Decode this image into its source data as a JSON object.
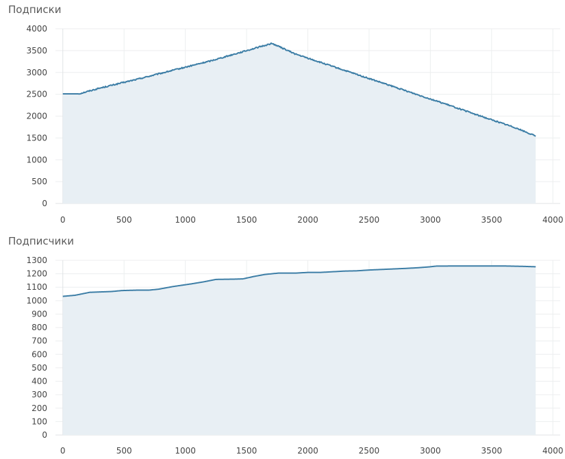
{
  "chart_data": [
    {
      "type": "area",
      "title": "Подписки",
      "xlabel": "",
      "ylabel": "",
      "xlim": [
        -60,
        4060
      ],
      "ylim": [
        0,
        4000
      ],
      "x_ticks": [
        0,
        500,
        1000,
        1500,
        2000,
        2500,
        3000,
        3500,
        4000
      ],
      "y_ticks": [
        0,
        500,
        1000,
        1500,
        2000,
        2500,
        3000,
        3500,
        4000
      ],
      "grid": true,
      "legend": "none",
      "colors": {
        "line": "#3d7ea6",
        "fill": "#e8eff4"
      },
      "series": [
        {
          "x": [
            0,
            130,
            300,
            600,
            900,
            1200,
            1500,
            1700,
            1720,
            1900,
            2200,
            2500,
            2800,
            3100,
            3400,
            3700,
            3860
          ],
          "y": [
            2510,
            2510,
            2640,
            2840,
            3050,
            3260,
            3500,
            3660,
            3650,
            3420,
            3140,
            2860,
            2580,
            2300,
            2010,
            1730,
            1540
          ]
        }
      ]
    },
    {
      "type": "area",
      "title": "Подписчики",
      "xlabel": "",
      "ylabel": "",
      "xlim": [
        -60,
        4060
      ],
      "ylim": [
        0,
        1300
      ],
      "x_ticks": [
        0,
        500,
        1000,
        1500,
        2000,
        2500,
        3000,
        3500,
        4000
      ],
      "y_ticks": [
        0,
        100,
        200,
        300,
        400,
        500,
        600,
        700,
        800,
        900,
        1000,
        1100,
        1200,
        1300
      ],
      "grid": true,
      "legend": "none",
      "colors": {
        "line": "#3d7ea6",
        "fill": "#e8eff4"
      },
      "series": [
        {
          "x": [
            0,
            100,
            220,
            400,
            480,
            600,
            700,
            780,
            900,
            1050,
            1150,
            1250,
            1400,
            1470,
            1560,
            1650,
            1760,
            1900,
            2000,
            2100,
            2200,
            2300,
            2400,
            2500,
            2600,
            2700,
            2800,
            2900,
            3000,
            3050,
            3200,
            3400,
            3600,
            3760,
            3860
          ],
          "y": [
            1032,
            1040,
            1062,
            1068,
            1075,
            1078,
            1078,
            1085,
            1105,
            1125,
            1140,
            1158,
            1160,
            1162,
            1180,
            1195,
            1205,
            1205,
            1210,
            1210,
            1215,
            1220,
            1222,
            1228,
            1232,
            1236,
            1240,
            1245,
            1252,
            1257,
            1258,
            1258,
            1258,
            1255,
            1252
          ]
        }
      ]
    }
  ]
}
